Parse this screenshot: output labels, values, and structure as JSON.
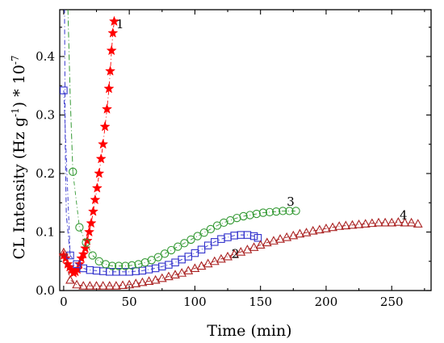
{
  "chart_data": {
    "type": "scatter",
    "title": "",
    "xlabel": "Time (min)",
    "ylabel_parts": {
      "main": "CL Intensity (Hz g",
      "sup1": "-1",
      "mid": ") * 10",
      "sup2": "-7"
    },
    "xlim": [
      -3,
      280
    ],
    "ylim": [
      0,
      0.48
    ],
    "xticks": [
      0,
      50,
      100,
      150,
      200,
      250
    ],
    "yticks": [
      0.0,
      0.1,
      0.2,
      0.3,
      0.4
    ],
    "ytick_labels": [
      "0.0",
      "0.1",
      "0.2",
      "0.3",
      "0.4"
    ],
    "grid": false,
    "series": [
      {
        "label": "1",
        "marker": "star",
        "color": "#ff0000",
        "label_x": 40,
        "label_y": 0.455,
        "points": [
          [
            0,
            0.06
          ],
          [
            1.5,
            0.055
          ],
          [
            3,
            0.045
          ],
          [
            4.5,
            0.04
          ],
          [
            6,
            0.035
          ],
          [
            7.5,
            0.03
          ],
          [
            9,
            0.032
          ],
          [
            10.5,
            0.036
          ],
          [
            12,
            0.045
          ],
          [
            13.5,
            0.055
          ],
          [
            15,
            0.062
          ],
          [
            16.5,
            0.072
          ],
          [
            18,
            0.085
          ],
          [
            19.5,
            0.1
          ],
          [
            21,
            0.115
          ],
          [
            22.5,
            0.135
          ],
          [
            24,
            0.155
          ],
          [
            25.5,
            0.175
          ],
          [
            27,
            0.2
          ],
          [
            28.5,
            0.225
          ],
          [
            30,
            0.25
          ],
          [
            31.5,
            0.28
          ],
          [
            33,
            0.31
          ],
          [
            34.5,
            0.345
          ],
          [
            35.5,
            0.375
          ],
          [
            36.5,
            0.41
          ],
          [
            37.5,
            0.44
          ],
          [
            38.5,
            0.46
          ]
        ]
      },
      {
        "label": "2",
        "marker": "square",
        "color": "#3333cc",
        "label_x": 128,
        "label_y": 0.063,
        "points": [
          [
            0,
            0.342
          ],
          [
            5,
            0.06
          ],
          [
            10,
            0.045
          ],
          [
            15,
            0.038
          ],
          [
            20,
            0.035
          ],
          [
            25,
            0.034
          ],
          [
            30,
            0.033
          ],
          [
            35,
            0.032
          ],
          [
            40,
            0.032
          ],
          [
            45,
            0.032
          ],
          [
            50,
            0.032
          ],
          [
            55,
            0.033
          ],
          [
            60,
            0.034
          ],
          [
            65,
            0.036
          ],
          [
            70,
            0.038
          ],
          [
            75,
            0.041
          ],
          [
            80,
            0.044
          ],
          [
            85,
            0.048
          ],
          [
            90,
            0.053
          ],
          [
            95,
            0.058
          ],
          [
            100,
            0.064
          ],
          [
            105,
            0.07
          ],
          [
            110,
            0.077
          ],
          [
            115,
            0.083
          ],
          [
            120,
            0.088
          ],
          [
            125,
            0.091
          ],
          [
            130,
            0.094
          ],
          [
            135,
            0.095
          ],
          [
            140,
            0.095
          ],
          [
            145,
            0.093
          ],
          [
            148,
            0.09
          ]
        ]
      },
      {
        "label": "3",
        "marker": "circle",
        "color": "#339933",
        "label_x": 170,
        "label_y": 0.152,
        "points": [
          [
            7,
            0.203
          ],
          [
            12,
            0.108
          ],
          [
            17,
            0.082
          ],
          [
            22,
            0.06
          ],
          [
            27,
            0.05
          ],
          [
            32,
            0.045
          ],
          [
            37,
            0.042
          ],
          [
            42,
            0.042
          ],
          [
            47,
            0.042
          ],
          [
            52,
            0.043
          ],
          [
            57,
            0.045
          ],
          [
            62,
            0.048
          ],
          [
            67,
            0.052
          ],
          [
            72,
            0.057
          ],
          [
            77,
            0.063
          ],
          [
            82,
            0.069
          ],
          [
            87,
            0.075
          ],
          [
            92,
            0.081
          ],
          [
            97,
            0.087
          ],
          [
            102,
            0.093
          ],
          [
            107,
            0.099
          ],
          [
            112,
            0.105
          ],
          [
            117,
            0.111
          ],
          [
            122,
            0.116
          ],
          [
            127,
            0.12
          ],
          [
            132,
            0.124
          ],
          [
            137,
            0.127
          ],
          [
            142,
            0.129
          ],
          [
            147,
            0.131
          ],
          [
            152,
            0.133
          ],
          [
            157,
            0.134
          ],
          [
            162,
            0.135
          ],
          [
            167,
            0.136
          ],
          [
            172,
            0.136
          ],
          [
            177,
            0.136
          ]
        ]
      },
      {
        "label": "4",
        "marker": "triangle",
        "color": "#aa2222",
        "label_x": 256,
        "label_y": 0.129,
        "points": [
          [
            0,
            0.065
          ],
          [
            5,
            0.018
          ],
          [
            10,
            0.01
          ],
          [
            15,
            0.008
          ],
          [
            20,
            0.008
          ],
          [
            25,
            0.008
          ],
          [
            30,
            0.008
          ],
          [
            35,
            0.008
          ],
          [
            40,
            0.008
          ],
          [
            45,
            0.009
          ],
          [
            50,
            0.01
          ],
          [
            55,
            0.012
          ],
          [
            60,
            0.014
          ],
          [
            65,
            0.016
          ],
          [
            70,
            0.018
          ],
          [
            75,
            0.021
          ],
          [
            80,
            0.024
          ],
          [
            85,
            0.027
          ],
          [
            90,
            0.03
          ],
          [
            95,
            0.034
          ],
          [
            100,
            0.038
          ],
          [
            105,
            0.042
          ],
          [
            110,
            0.046
          ],
          [
            115,
            0.05
          ],
          [
            120,
            0.054
          ],
          [
            125,
            0.058
          ],
          [
            130,
            0.062
          ],
          [
            135,
            0.066
          ],
          [
            140,
            0.07
          ],
          [
            145,
            0.074
          ],
          [
            150,
            0.078
          ],
          [
            155,
            0.082
          ],
          [
            160,
            0.085
          ],
          [
            165,
            0.088
          ],
          [
            170,
            0.091
          ],
          [
            175,
            0.094
          ],
          [
            180,
            0.097
          ],
          [
            185,
            0.099
          ],
          [
            190,
            0.102
          ],
          [
            195,
            0.104
          ],
          [
            200,
            0.106
          ],
          [
            205,
            0.108
          ],
          [
            210,
            0.11
          ],
          [
            215,
            0.111
          ],
          [
            220,
            0.112
          ],
          [
            225,
            0.113
          ],
          [
            230,
            0.114
          ],
          [
            235,
            0.115
          ],
          [
            240,
            0.116
          ],
          [
            245,
            0.116
          ],
          [
            250,
            0.116
          ],
          [
            255,
            0.117
          ],
          [
            260,
            0.116
          ],
          [
            265,
            0.116
          ],
          [
            270,
            0.114
          ]
        ]
      }
    ]
  }
}
